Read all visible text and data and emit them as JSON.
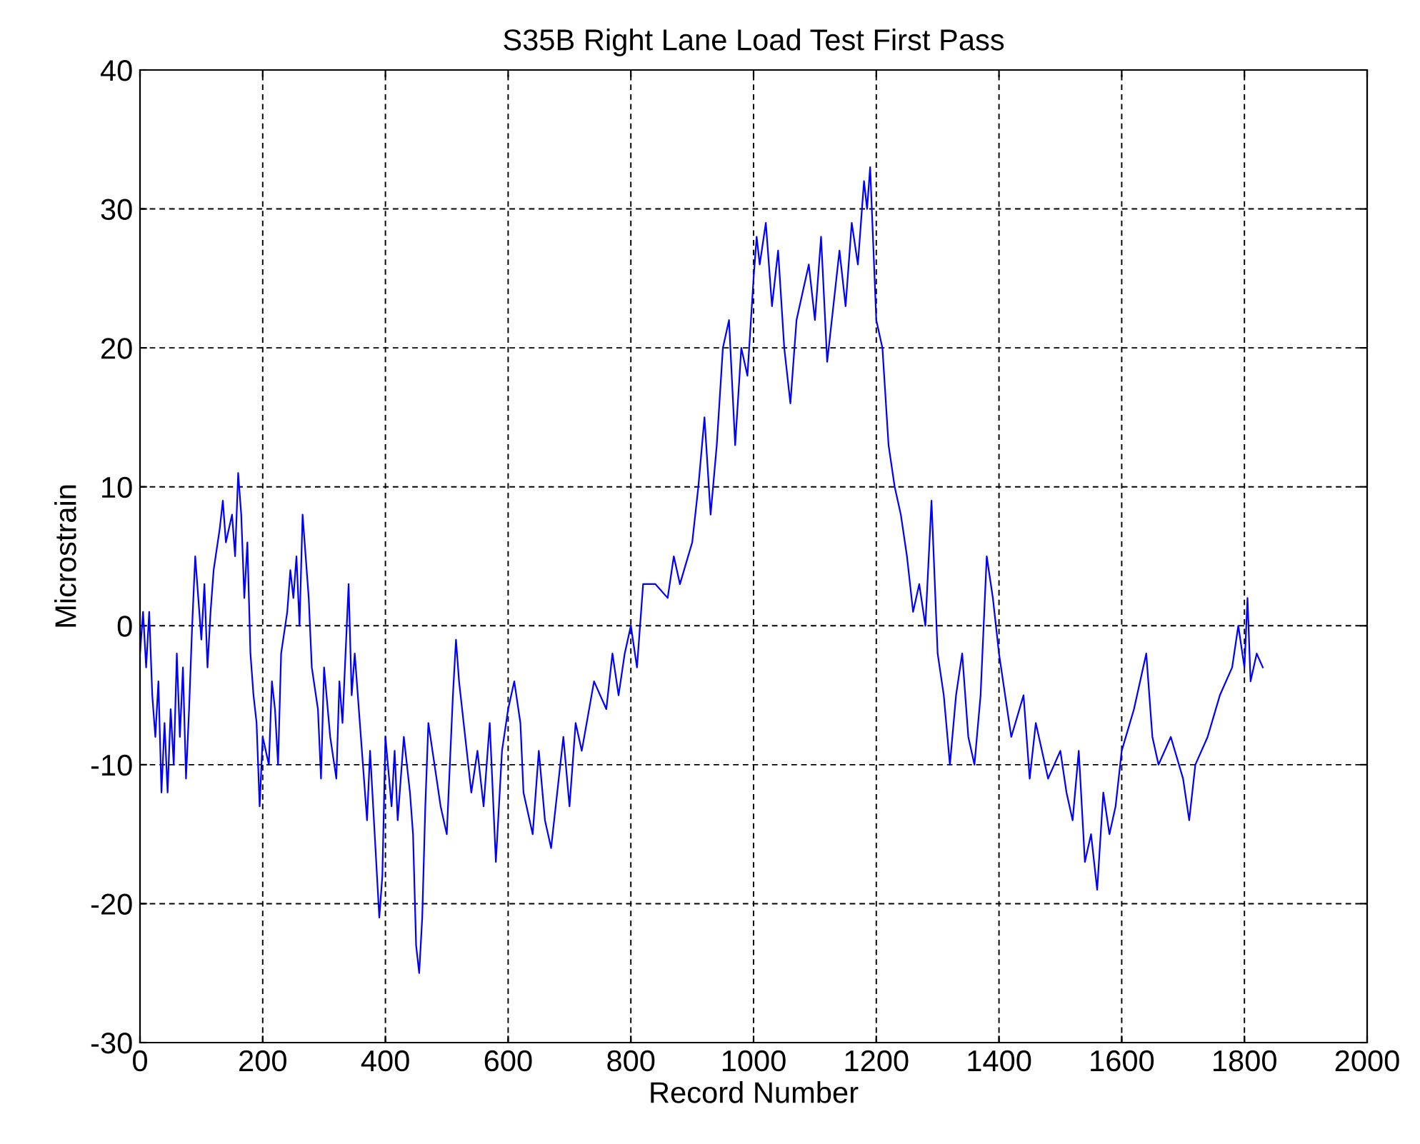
{
  "chart_data": {
    "type": "line",
    "title": "S35B Right Lane Load Test First Pass",
    "xlabel": "Record Number",
    "ylabel": "Microstrain",
    "xlim": [
      0,
      2000
    ],
    "xticks": [
      0,
      200,
      400,
      600,
      800,
      1000,
      1200,
      1400,
      1600,
      1800,
      2000
    ],
    "ylim": [
      -30,
      40
    ],
    "yticks": [
      -30,
      -20,
      -10,
      0,
      10,
      20,
      30,
      40
    ],
    "grid": true,
    "legend": false,
    "series": [
      {
        "color": "#0000ff",
        "x": [
          0,
          5,
          10,
          15,
          20,
          25,
          30,
          35,
          40,
          45,
          50,
          55,
          60,
          65,
          70,
          75,
          80,
          85,
          90,
          95,
          100,
          105,
          110,
          115,
          120,
          130,
          135,
          140,
          150,
          155,
          160,
          165,
          170,
          175,
          180,
          185,
          190,
          195,
          200,
          210,
          215,
          220,
          225,
          230,
          240,
          245,
          250,
          255,
          260,
          265,
          270,
          275,
          280,
          290,
          295,
          300,
          310,
          320,
          325,
          330,
          340,
          345,
          350,
          360,
          370,
          375,
          380,
          385,
          390,
          395,
          400,
          410,
          415,
          420,
          430,
          440,
          445,
          450,
          455,
          460,
          465,
          470,
          480,
          490,
          500,
          510,
          515,
          520,
          530,
          540,
          550,
          560,
          570,
          580,
          590,
          600,
          610,
          620,
          625,
          640,
          650,
          660,
          670,
          680,
          690,
          700,
          710,
          720,
          740,
          760,
          770,
          780,
          790,
          800,
          810,
          820,
          840,
          860,
          870,
          880,
          900,
          910,
          920,
          930,
          940,
          950,
          960,
          970,
          980,
          990,
          1000,
          1005,
          1010,
          1020,
          1030,
          1040,
          1050,
          1060,
          1070,
          1080,
          1090,
          1100,
          1110,
          1120,
          1130,
          1140,
          1150,
          1160,
          1170,
          1180,
          1185,
          1190,
          1200,
          1210,
          1220,
          1230,
          1240,
          1250,
          1260,
          1270,
          1280,
          1290,
          1300,
          1310,
          1320,
          1330,
          1340,
          1350,
          1360,
          1370,
          1380,
          1390,
          1400,
          1410,
          1420,
          1440,
          1450,
          1460,
          1480,
          1500,
          1510,
          1520,
          1530,
          1540,
          1550,
          1560,
          1570,
          1580,
          1590,
          1600,
          1620,
          1640,
          1650,
          1660,
          1680,
          1700,
          1710,
          1720,
          1740,
          1760,
          1780,
          1790,
          1800,
          1805,
          1810,
          1820,
          1830
        ],
        "values": [
          -2,
          1,
          -3,
          1,
          -5,
          -8,
          -4,
          -12,
          -7,
          -12,
          -6,
          -10,
          -2,
          -8,
          -3,
          -11,
          -6,
          0,
          5,
          2,
          -1,
          3,
          -3,
          1,
          4,
          7,
          9,
          6,
          8,
          5,
          11,
          8,
          2,
          6,
          -2,
          -5,
          -7,
          -13,
          -8,
          -10,
          -4,
          -6,
          -10,
          -2,
          1,
          4,
          2,
          5,
          0,
          8,
          5,
          2,
          -3,
          -6,
          -11,
          -3,
          -8,
          -11,
          -4,
          -7,
          3,
          -5,
          -2,
          -8,
          -14,
          -9,
          -13,
          -17,
          -21,
          -18,
          -8,
          -13,
          -9,
          -14,
          -8,
          -12,
          -15,
          -23,
          -25,
          -21,
          -13,
          -7,
          -10,
          -13,
          -15,
          -5,
          -1,
          -4,
          -8,
          -12,
          -9,
          -13,
          -7,
          -17,
          -9,
          -6,
          -4,
          -7,
          -12,
          -15,
          -9,
          -14,
          -16,
          -12,
          -8,
          -13,
          -7,
          -9,
          -4,
          -6,
          -2,
          -5,
          -2,
          0,
          -3,
          3,
          3,
          2,
          5,
          3,
          6,
          10,
          15,
          8,
          13,
          20,
          22,
          13,
          20,
          18,
          25,
          28,
          26,
          29,
          23,
          27,
          20,
          16,
          22,
          24,
          26,
          22,
          28,
          19,
          23,
          27,
          23,
          29,
          26,
          32,
          30,
          33,
          22,
          20,
          13,
          10,
          8,
          5,
          1,
          3,
          0,
          9,
          -2,
          -5,
          -10,
          -5,
          -2,
          -8,
          -10,
          -5,
          5,
          2,
          -2,
          -5,
          -8,
          -5,
          -11,
          -7,
          -11,
          -9,
          -12,
          -14,
          -9,
          -17,
          -15,
          -19,
          -12,
          -15,
          -13,
          -9,
          -6,
          -2,
          -8,
          -10,
          -8,
          -11,
          -14,
          -10,
          -8,
          -5,
          -3,
          0,
          -3,
          2,
          -4,
          -2,
          -3
        ]
      }
    ]
  }
}
